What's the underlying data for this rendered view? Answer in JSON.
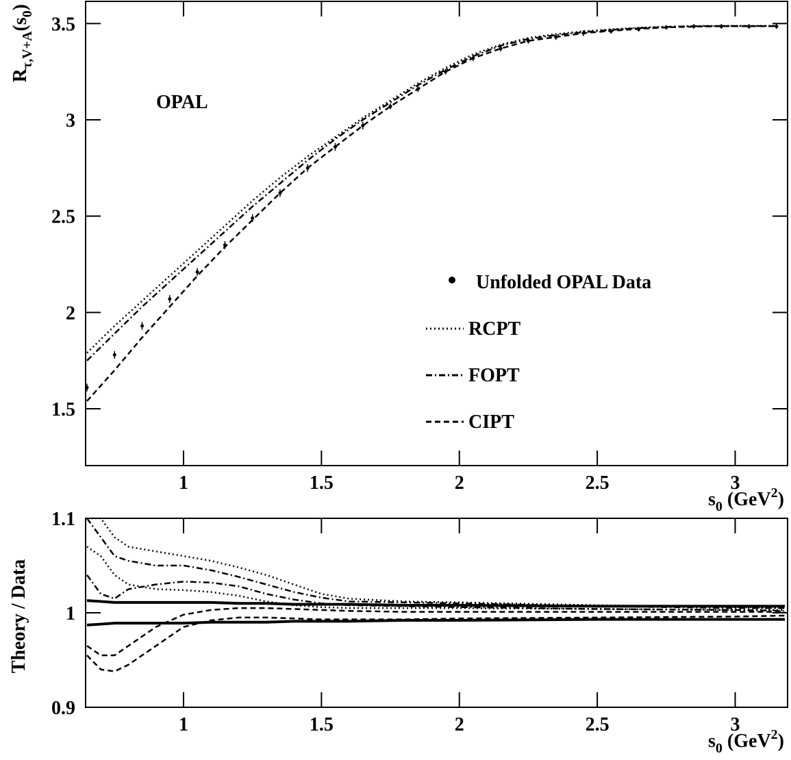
{
  "chart_data": [
    {
      "type": "line",
      "annotation": "OPAL",
      "ylabel": {
        "main": "R",
        "sub": "τ,V+A",
        "arg": "(s",
        "argsub": "0",
        "close": ")"
      },
      "xlabel": {
        "main": "s",
        "sub": "0",
        "unit": " (GeV",
        "sup": "2",
        "close": ")"
      },
      "xlim": [
        0.645,
        3.19
      ],
      "ylim": [
        1.205,
        3.615
      ],
      "xticks": [
        1,
        1.5,
        2,
        2.5,
        3
      ],
      "yticks": [
        1.5,
        2,
        2.5,
        3,
        {
          "value": 3.5,
          "label": "3.5"
        }
      ],
      "legend": "right",
      "x": [
        0.65,
        0.75,
        0.85,
        0.95,
        1.05,
        1.15,
        1.25,
        1.35,
        1.45,
        1.55,
        1.65,
        1.75,
        1.85,
        1.95,
        2.05,
        2.15,
        2.25,
        2.35,
        2.45,
        2.55,
        2.65,
        2.75,
        2.85,
        2.95,
        3.05,
        3.15
      ],
      "series": [
        {
          "name": "Unfolded OPAL Data",
          "color": "#000000",
          "style": "points",
          "values": [
            1.61,
            1.78,
            1.93,
            2.07,
            2.21,
            2.35,
            2.49,
            2.62,
            2.75,
            2.86,
            2.97,
            3.07,
            3.16,
            3.25,
            3.32,
            3.37,
            3.41,
            3.43,
            3.45,
            3.46,
            3.47,
            3.48,
            3.485,
            3.485,
            3.485,
            3.485
          ],
          "errors": [
            0.02,
            0.02,
            0.02,
            0.02,
            0.02,
            0.02,
            0.02,
            0.02,
            0.02,
            0.02,
            0.02,
            0.015,
            0.015,
            0.015,
            0.015,
            0.015,
            0.015,
            0.015,
            0.015,
            0.012,
            0.012,
            0.012,
            0.012,
            0.012,
            0.012,
            0.012
          ]
        },
        {
          "name": "RCPT",
          "color": "#000000",
          "style": "dotted",
          "values": [
            1.79,
            1.93,
            2.06,
            2.19,
            2.32,
            2.45,
            2.58,
            2.7,
            2.81,
            2.91,
            3.01,
            3.1,
            3.19,
            3.27,
            3.34,
            3.39,
            3.425,
            3.445,
            3.46,
            3.47,
            3.478,
            3.484,
            3.487,
            3.488,
            3.488,
            3.488
          ]
        },
        {
          "name": "FOPT",
          "color": "#000000",
          "style": "dashdot",
          "values": [
            1.75,
            1.89,
            2.03,
            2.16,
            2.29,
            2.42,
            2.55,
            2.67,
            2.79,
            2.9,
            3.0,
            3.09,
            3.18,
            3.26,
            3.33,
            3.385,
            3.42,
            3.44,
            3.455,
            3.467,
            3.476,
            3.482,
            3.486,
            3.487,
            3.487,
            3.487
          ]
        },
        {
          "name": "CIPT",
          "color": "#000000",
          "style": "dashed",
          "values": [
            1.54,
            1.7,
            1.87,
            2.03,
            2.19,
            2.34,
            2.48,
            2.62,
            2.75,
            2.86,
            2.97,
            3.07,
            3.16,
            3.25,
            3.32,
            3.37,
            3.41,
            3.43,
            3.45,
            3.462,
            3.472,
            3.48,
            3.484,
            3.486,
            3.486,
            3.486
          ]
        }
      ]
    },
    {
      "type": "line",
      "ylabel": "Theory / Data",
      "xlabel": {
        "main": "s",
        "sub": "0",
        "unit": " (GeV",
        "sup": "2",
        "close": ")"
      },
      "xlim": [
        0.645,
        3.19
      ],
      "ylim": [
        0.9,
        1.1
      ],
      "xticks": [
        1,
        1.5,
        2,
        2.5,
        3
      ],
      "yticks": [
        0.9,
        1,
        1.1
      ],
      "x": [
        0.65,
        0.7,
        0.75,
        0.8,
        0.9,
        1.0,
        1.1,
        1.2,
        1.3,
        1.4,
        1.5,
        1.6,
        1.8,
        2.0,
        2.5,
        3.0,
        3.18
      ],
      "series": [
        {
          "color": "#000000",
          "style": "dotted",
          "values": [
            1.1,
            1.1,
            1.08,
            1.07,
            1.065,
            1.06,
            1.055,
            1.048,
            1.04,
            1.03,
            1.02,
            1.015,
            1.012,
            1.011,
            1.008,
            1.006,
            1.005
          ]
        },
        {
          "color": "#000000",
          "style": "dotted",
          "values": [
            1.07,
            1.06,
            1.04,
            1.03,
            1.025,
            1.024,
            1.022,
            1.018,
            1.012,
            1.008,
            1.006,
            1.005,
            1.005,
            1.005,
            1.004,
            1.003,
            1.003
          ]
        },
        {
          "color": "#000000",
          "style": "dashdot",
          "values": [
            1.1,
            1.08,
            1.06,
            1.055,
            1.05,
            1.05,
            1.045,
            1.038,
            1.03,
            1.022,
            1.016,
            1.012,
            1.011,
            1.01,
            1.007,
            1.005,
            1.005
          ]
        },
        {
          "color": "#000000",
          "style": "dashdot",
          "values": [
            1.04,
            1.02,
            1.015,
            1.025,
            1.03,
            1.033,
            1.032,
            1.028,
            1.02,
            1.014,
            1.01,
            1.008,
            1.007,
            1.006,
            1.004,
            1.003,
            1.002
          ]
        },
        {
          "color": "#000000",
          "style": "dashed",
          "values": [
            0.965,
            0.955,
            0.955,
            0.965,
            0.985,
            0.998,
            1.003,
            1.005,
            1.005,
            1.004,
            1.003,
            1.002,
            1.001,
            1.001,
            1.001,
            1.001,
            1.001
          ]
        },
        {
          "color": "#000000",
          "style": "dashed",
          "values": [
            0.955,
            0.94,
            0.938,
            0.945,
            0.965,
            0.985,
            0.992,
            0.995,
            0.995,
            0.994,
            0.993,
            0.993,
            0.993,
            0.994,
            0.995,
            0.996,
            0.997
          ]
        },
        {
          "color": "#000000",
          "style": "solid",
          "values": [
            1.013,
            1.012,
            1.011,
            1.011,
            1.011,
            1.011,
            1.011,
            1.01,
            1.01,
            1.009,
            1.009,
            1.009,
            1.008,
            1.008,
            1.007,
            1.007,
            1.007
          ]
        },
        {
          "color": "#000000",
          "style": "solid",
          "values": [
            0.987,
            0.988,
            0.989,
            0.989,
            0.989,
            0.989,
            0.99,
            0.99,
            0.99,
            0.991,
            0.991,
            0.991,
            0.992,
            0.992,
            0.993,
            0.993,
            0.993
          ]
        }
      ]
    }
  ]
}
